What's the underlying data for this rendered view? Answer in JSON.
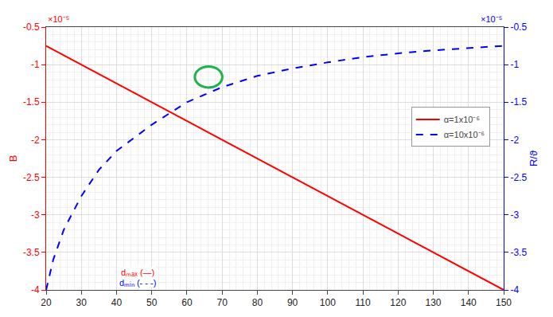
{
  "chart_data": {
    "type": "line",
    "ylabel": "B",
    "y2label": "R/ϑ",
    "xlabel": [
      "dₘₐₓ (—)",
      "dₘᵢₙ (- - -)"
    ],
    "y_multiplier": "×10⁻⁵",
    "y2_multiplier": "×10⁻⁵",
    "xlim": [
      20,
      150
    ],
    "xticks": [
      20,
      30,
      40,
      50,
      60,
      70,
      80,
      90,
      100,
      110,
      120,
      130,
      140,
      150
    ],
    "ylim": [
      -4,
      -0.5
    ],
    "yticks": [
      -4,
      -3.5,
      -3,
      -2.5,
      -2,
      -1.5,
      -1,
      -0.5
    ],
    "y2lim": [
      -4,
      -0.5
    ],
    "y2ticks": [
      -4,
      -3.5,
      -3,
      -2.5,
      -2,
      -1.5,
      -1,
      -0.5
    ],
    "grid": true,
    "legend": "right",
    "series": [
      {
        "name": "α=1x10⁻⁶",
        "color": "#ff0000",
        "line_style": "solid",
        "x": [
          20,
          150
        ],
        "values": [
          -0.75,
          -4
        ]
      },
      {
        "name": "α=10x10⁻⁶",
        "color": "#0000ff",
        "line_style": "dash",
        "axis": "y2",
        "x": [
          20,
          22,
          25,
          30,
          35,
          40,
          50,
          60,
          70,
          80,
          90,
          100,
          110,
          120,
          130,
          140,
          150
        ],
        "values": [
          -4,
          -3.6,
          -3.2,
          -2.75,
          -2.4,
          -2.15,
          -1.8,
          -1.5,
          -1.3,
          -1.15,
          -1.05,
          -0.97,
          -0.9,
          -0.85,
          -0.81,
          -0.78,
          -0.75
        ]
      }
    ]
  }
}
